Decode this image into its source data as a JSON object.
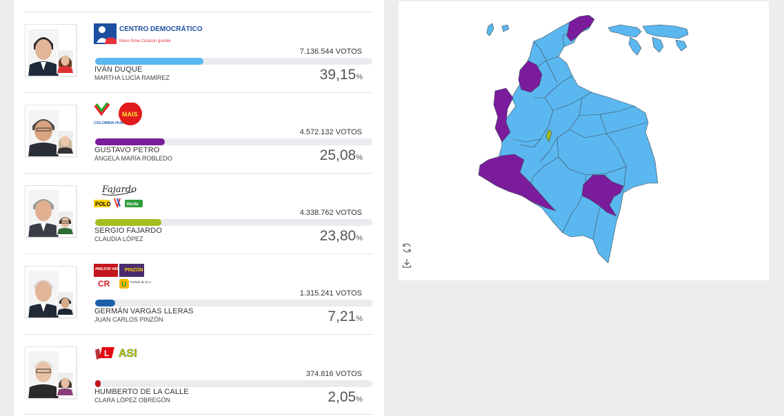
{
  "candidates": [
    {
      "name": "IVÁN DUQUE",
      "vp": "MARTHA LUCÍA RAMÍREZ",
      "votes_number": "7.136.544",
      "votes_unit": "VOTOS",
      "pct_value": "39,15",
      "pct_symbol": "%",
      "share": 0.3915,
      "color": "#5bb7ef",
      "logos": [
        "CENTRO DEMOCRÁTICO",
        "Mano firme Corazón grande"
      ]
    },
    {
      "name": "GUSTAVO PETRO",
      "vp": "ÁNGELA MARÍA ROBLEDO",
      "votes_number": "4.572.132",
      "votes_unit": "VOTOS",
      "pct_value": "25,08",
      "pct_symbol": "%",
      "share": 0.2508,
      "color": "#7a1c9c",
      "logos": [
        "COLOMBIA HUMANA",
        "MAIS"
      ]
    },
    {
      "name": "SERGIO FAJARDO",
      "vp": "CLAUDIA LÓPEZ",
      "votes_number": "4.338.762",
      "votes_unit": "VOTOS",
      "pct_value": "23,80",
      "pct_symbol": "%",
      "share": 0.238,
      "color": "#a3bf1f",
      "logos": [
        "Fajardo",
        "POLO",
        "Verde"
      ]
    },
    {
      "name": "GERMÁN VARGAS LLERAS",
      "vp": "JUAN CARLOS PINZÓN",
      "votes_number": "1.315.241",
      "votes_unit": "VOTOS",
      "pct_value": "7,21",
      "pct_symbol": "%",
      "share": 0.0721,
      "color": "#1c5fa8",
      "logos": [
        "#MEJOR VARGAS LLERAS",
        "PINZÓN",
        "CR",
        "Partido de la U"
      ]
    },
    {
      "name": "HUMBERTO DE LA CALLE",
      "vp": "CLARA LÓPEZ OBREGÓN",
      "votes_number": "374.816",
      "votes_unit": "VOTOS",
      "pct_value": "2,05",
      "pct_symbol": "%",
      "share": 0.0205,
      "color": "#c0141d",
      "logos": [
        "L",
        "ASI"
      ]
    }
  ],
  "map": {
    "colors": {
      "duque": "#5bb7ef",
      "petro": "#7a1c9c",
      "fajardo": "#a3bf1f",
      "border": "#3d4a55"
    },
    "tools": [
      "refresh-icon",
      "download-icon"
    ]
  }
}
